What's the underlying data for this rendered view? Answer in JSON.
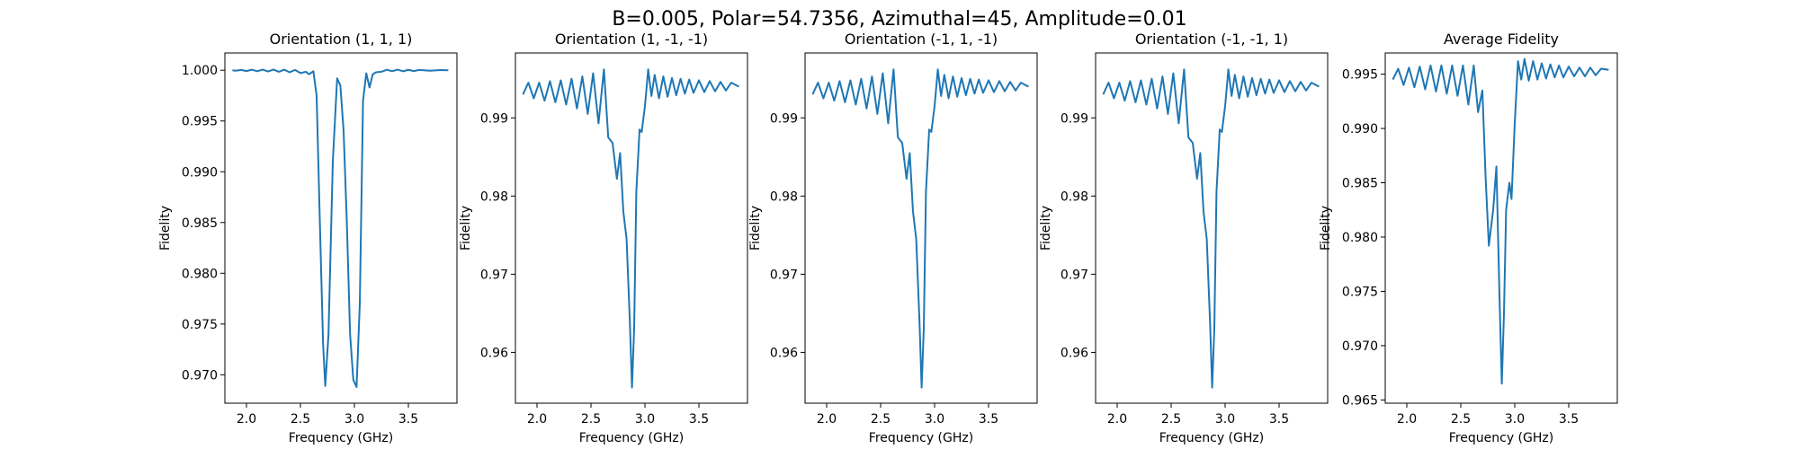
{
  "figure": {
    "suptitle": "B=0.005, Polar=54.7356, Azimuthal=45, Amplitude=0.01",
    "line_color": "#1f77b4"
  },
  "chart_data": [
    {
      "type": "line",
      "title": "Orientation (1, 1, 1)",
      "xlabel": "Frequency (GHz)",
      "ylabel": "Fidelity",
      "xlim": [
        1.8,
        3.95
      ],
      "ylim": [
        0.9672,
        1.0017
      ],
      "xticks": [
        2.0,
        2.5,
        3.0,
        3.5
      ],
      "xtick_labels": [
        "2.0",
        "2.5",
        "3.0",
        "3.5"
      ],
      "yticks": [
        0.97,
        0.975,
        0.98,
        0.985,
        0.99,
        0.995,
        1.0
      ],
      "ytick_labels": [
        "0.970",
        "0.975",
        "0.980",
        "0.985",
        "0.990",
        "0.995",
        "1.000"
      ],
      "series": [
        {
          "x": [
            1.87,
            1.9,
            1.95,
            2.0,
            2.05,
            2.1,
            2.15,
            2.2,
            2.25,
            2.3,
            2.35,
            2.4,
            2.45,
            2.5,
            2.55,
            2.58,
            2.62,
            2.65,
            2.68,
            2.71,
            2.73,
            2.76,
            2.8,
            2.84,
            2.87,
            2.9,
            2.93,
            2.96,
            2.99,
            3.02,
            3.05,
            3.08,
            3.11,
            3.14,
            3.17,
            3.2,
            3.25,
            3.3,
            3.35,
            3.4,
            3.45,
            3.5,
            3.55,
            3.6,
            3.7,
            3.8,
            3.87
          ],
          "y": [
            1.0,
            0.99995,
            1.00003,
            0.99992,
            1.00005,
            0.9999,
            1.00006,
            0.99988,
            1.00007,
            0.99985,
            1.00006,
            0.9998,
            1.00003,
            0.99972,
            0.99985,
            0.9996,
            0.9999,
            0.9975,
            0.985,
            0.973,
            0.9689,
            0.974,
            0.991,
            0.9992,
            0.9985,
            0.994,
            0.985,
            0.974,
            0.9695,
            0.9688,
            0.977,
            0.997,
            0.9997,
            0.9983,
            0.9996,
            0.9998,
            0.99985,
            1.00005,
            0.9999,
            1.00006,
            0.9999,
            1.00004,
            0.99992,
            1.00003,
            0.99995,
            1.00002,
            1.0
          ]
        }
      ]
    },
    {
      "type": "line",
      "title": "Orientation (1, -1, -1)",
      "xlabel": "Frequency (GHz)",
      "ylabel": "Fidelity",
      "xlim": [
        1.8,
        3.95
      ],
      "ylim": [
        0.9535,
        0.9983
      ],
      "xticks": [
        2.0,
        2.5,
        3.0,
        3.5
      ],
      "xtick_labels": [
        "2.0",
        "2.5",
        "3.0",
        "3.5"
      ],
      "yticks": [
        0.96,
        0.97,
        0.98,
        0.99
      ],
      "ytick_labels": [
        "0.96",
        "0.97",
        "0.98",
        "0.99"
      ],
      "series": [
        {
          "x": [
            1.87,
            1.92,
            1.97,
            2.02,
            2.07,
            2.12,
            2.17,
            2.22,
            2.27,
            2.32,
            2.37,
            2.42,
            2.47,
            2.52,
            2.57,
            2.62,
            2.66,
            2.7,
            2.74,
            2.77,
            2.8,
            2.83,
            2.86,
            2.88,
            2.9,
            2.92,
            2.95,
            2.97,
            3.0,
            3.03,
            3.06,
            3.09,
            3.13,
            3.17,
            3.21,
            3.25,
            3.29,
            3.33,
            3.37,
            3.41,
            3.45,
            3.5,
            3.55,
            3.6,
            3.65,
            3.7,
            3.75,
            3.8,
            3.87
          ],
          "y": [
            0.993,
            0.9945,
            0.9925,
            0.9945,
            0.9922,
            0.9947,
            0.992,
            0.9948,
            0.9917,
            0.995,
            0.9912,
            0.9953,
            0.9905,
            0.9957,
            0.9893,
            0.9962,
            0.9875,
            0.9868,
            0.9822,
            0.9855,
            0.978,
            0.9745,
            0.964,
            0.9555,
            0.963,
            0.9805,
            0.9885,
            0.9882,
            0.9915,
            0.9962,
            0.9928,
            0.9955,
            0.9925,
            0.9953,
            0.9927,
            0.9951,
            0.9929,
            0.995,
            0.9931,
            0.9949,
            0.9932,
            0.9948,
            0.9933,
            0.9947,
            0.9934,
            0.9946,
            0.9935,
            0.9945,
            0.994
          ]
        }
      ]
    },
    {
      "type": "line",
      "title": "Orientation (-1, 1, -1)",
      "xlabel": "Frequency (GHz)",
      "ylabel": "Fidelity",
      "xlim": [
        1.8,
        3.95
      ],
      "ylim": [
        0.9535,
        0.9983
      ],
      "xticks": [
        2.0,
        2.5,
        3.0,
        3.5
      ],
      "xtick_labels": [
        "2.0",
        "2.5",
        "3.0",
        "3.5"
      ],
      "yticks": [
        0.96,
        0.97,
        0.98,
        0.99
      ],
      "ytick_labels": [
        "0.96",
        "0.97",
        "0.98",
        "0.99"
      ],
      "series": [
        {
          "x": [
            1.87,
            1.92,
            1.97,
            2.02,
            2.07,
            2.12,
            2.17,
            2.22,
            2.27,
            2.32,
            2.37,
            2.42,
            2.47,
            2.52,
            2.57,
            2.62,
            2.66,
            2.7,
            2.74,
            2.77,
            2.8,
            2.83,
            2.86,
            2.88,
            2.9,
            2.92,
            2.95,
            2.97,
            3.0,
            3.03,
            3.06,
            3.09,
            3.13,
            3.17,
            3.21,
            3.25,
            3.29,
            3.33,
            3.37,
            3.41,
            3.45,
            3.5,
            3.55,
            3.6,
            3.65,
            3.7,
            3.75,
            3.8,
            3.87
          ],
          "y": [
            0.993,
            0.9945,
            0.9925,
            0.9945,
            0.9922,
            0.9947,
            0.992,
            0.9948,
            0.9917,
            0.995,
            0.9912,
            0.9953,
            0.9905,
            0.9957,
            0.9893,
            0.9962,
            0.9875,
            0.9868,
            0.9822,
            0.9855,
            0.978,
            0.9745,
            0.964,
            0.9555,
            0.963,
            0.9805,
            0.9885,
            0.9882,
            0.9915,
            0.9962,
            0.9928,
            0.9955,
            0.9925,
            0.9953,
            0.9927,
            0.9951,
            0.9929,
            0.995,
            0.9931,
            0.9949,
            0.9932,
            0.9948,
            0.9933,
            0.9947,
            0.9934,
            0.9946,
            0.9935,
            0.9945,
            0.994
          ]
        }
      ]
    },
    {
      "type": "line",
      "title": "Orientation (-1, -1, 1)",
      "xlabel": "Frequency (GHz)",
      "ylabel": "Fidelity",
      "xlim": [
        1.8,
        3.95
      ],
      "ylim": [
        0.9535,
        0.9983
      ],
      "xticks": [
        2.0,
        2.5,
        3.0,
        3.5
      ],
      "xtick_labels": [
        "2.0",
        "2.5",
        "3.0",
        "3.5"
      ],
      "yticks": [
        0.96,
        0.97,
        0.98,
        0.99
      ],
      "ytick_labels": [
        "0.96",
        "0.97",
        "0.98",
        "0.99"
      ],
      "series": [
        {
          "x": [
            1.87,
            1.92,
            1.97,
            2.02,
            2.07,
            2.12,
            2.17,
            2.22,
            2.27,
            2.32,
            2.37,
            2.42,
            2.47,
            2.52,
            2.57,
            2.62,
            2.66,
            2.7,
            2.74,
            2.77,
            2.8,
            2.83,
            2.86,
            2.88,
            2.9,
            2.92,
            2.95,
            2.97,
            3.0,
            3.03,
            3.06,
            3.09,
            3.13,
            3.17,
            3.21,
            3.25,
            3.29,
            3.33,
            3.37,
            3.41,
            3.45,
            3.5,
            3.55,
            3.6,
            3.65,
            3.7,
            3.75,
            3.8,
            3.87
          ],
          "y": [
            0.993,
            0.9945,
            0.9925,
            0.9945,
            0.9922,
            0.9947,
            0.992,
            0.9948,
            0.9917,
            0.995,
            0.9912,
            0.9953,
            0.9905,
            0.9957,
            0.9893,
            0.9962,
            0.9875,
            0.9868,
            0.9822,
            0.9855,
            0.978,
            0.9745,
            0.964,
            0.9555,
            0.963,
            0.9805,
            0.9885,
            0.9882,
            0.9915,
            0.9962,
            0.9928,
            0.9955,
            0.9925,
            0.9953,
            0.9927,
            0.9951,
            0.9929,
            0.995,
            0.9931,
            0.9949,
            0.9932,
            0.9948,
            0.9933,
            0.9947,
            0.9934,
            0.9946,
            0.9935,
            0.9945,
            0.994
          ]
        }
      ]
    },
    {
      "type": "line",
      "title": "Average Fidelity",
      "xlabel": "Frequency (GHz)",
      "ylabel": "Fidelity",
      "xlim": [
        1.8,
        3.95
      ],
      "ylim": [
        0.9647,
        0.99695
      ],
      "xticks": [
        2.0,
        2.5,
        3.0,
        3.5
      ],
      "xtick_labels": [
        "2.0",
        "2.5",
        "3.0",
        "3.5"
      ],
      "yticks": [
        0.965,
        0.97,
        0.975,
        0.98,
        0.985,
        0.99,
        0.995
      ],
      "ytick_labels": [
        "0.965",
        "0.970",
        "0.975",
        "0.980",
        "0.985",
        "0.990",
        "0.995"
      ],
      "series": [
        {
          "x": [
            1.87,
            1.92,
            1.97,
            2.02,
            2.07,
            2.12,
            2.17,
            2.22,
            2.27,
            2.32,
            2.37,
            2.42,
            2.47,
            2.52,
            2.57,
            2.62,
            2.66,
            2.7,
            2.73,
            2.76,
            2.8,
            2.83,
            2.86,
            2.88,
            2.9,
            2.92,
            2.95,
            2.97,
            3.0,
            3.03,
            3.06,
            3.09,
            3.13,
            3.17,
            3.21,
            3.25,
            3.29,
            3.33,
            3.37,
            3.41,
            3.45,
            3.5,
            3.55,
            3.6,
            3.65,
            3.7,
            3.75,
            3.8,
            3.87
          ],
          "y": [
            0.9945,
            0.9955,
            0.994,
            0.9956,
            0.9938,
            0.9957,
            0.9936,
            0.9958,
            0.9934,
            0.9958,
            0.9932,
            0.9958,
            0.993,
            0.9958,
            0.9922,
            0.9958,
            0.9915,
            0.9935,
            0.9855,
            0.9792,
            0.9825,
            0.9865,
            0.974,
            0.9665,
            0.973,
            0.9825,
            0.985,
            0.9835,
            0.9905,
            0.9962,
            0.9945,
            0.9964,
            0.9944,
            0.9962,
            0.9945,
            0.996,
            0.9946,
            0.9959,
            0.9947,
            0.9958,
            0.9947,
            0.9957,
            0.9948,
            0.9956,
            0.9948,
            0.9956,
            0.9949,
            0.9955,
            0.9954
          ]
        }
      ]
    }
  ]
}
